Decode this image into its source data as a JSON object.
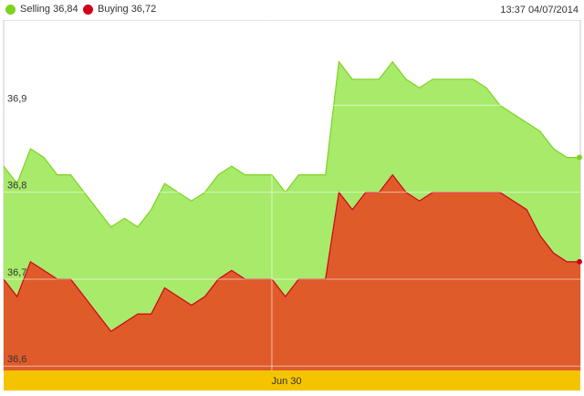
{
  "header": {
    "timestamp": "13:37 04/07/2014"
  },
  "chart_data": {
    "type": "area",
    "series": [
      {
        "name": "Selling 36,84",
        "color": "#7ed321",
        "fill": "#a8ea6a",
        "values": [
          36.83,
          36.81,
          36.85,
          36.84,
          36.82,
          36.82,
          36.8,
          36.78,
          36.76,
          36.77,
          36.76,
          36.78,
          36.81,
          36.8,
          36.79,
          36.8,
          36.82,
          36.83,
          36.82,
          36.82,
          36.82,
          36.8,
          36.82,
          36.82,
          36.82,
          36.95,
          36.93,
          36.93,
          36.93,
          36.95,
          36.93,
          36.92,
          36.93,
          36.93,
          36.93,
          36.93,
          36.92,
          36.9,
          36.89,
          36.88,
          36.87,
          36.85,
          36.84,
          36.84
        ]
      },
      {
        "name": "Buying 36,72",
        "color": "#d0021b",
        "fill": "#df5b2a",
        "values": [
          36.7,
          36.68,
          36.72,
          36.71,
          36.7,
          36.7,
          36.68,
          36.66,
          36.64,
          36.65,
          36.66,
          36.66,
          36.69,
          36.68,
          36.67,
          36.68,
          36.7,
          36.71,
          36.7,
          36.7,
          36.7,
          36.68,
          36.7,
          36.7,
          36.7,
          36.8,
          36.78,
          36.8,
          36.8,
          36.82,
          36.8,
          36.79,
          36.8,
          36.8,
          36.8,
          36.8,
          36.8,
          36.8,
          36.79,
          36.78,
          36.75,
          36.73,
          36.72,
          36.72
        ]
      }
    ],
    "yticks": [
      {
        "value": 36.9,
        "label": "36,9"
      },
      {
        "value": 36.8,
        "label": "36,8"
      },
      {
        "value": 36.7,
        "label": "36,7"
      },
      {
        "value": 36.6,
        "label": "36,6"
      }
    ],
    "ylim": [
      36.595,
      36.998
    ],
    "xband_label": "Jun 30",
    "xband_color": "#f5c400",
    "grid": true,
    "legend_position": "top-left"
  }
}
